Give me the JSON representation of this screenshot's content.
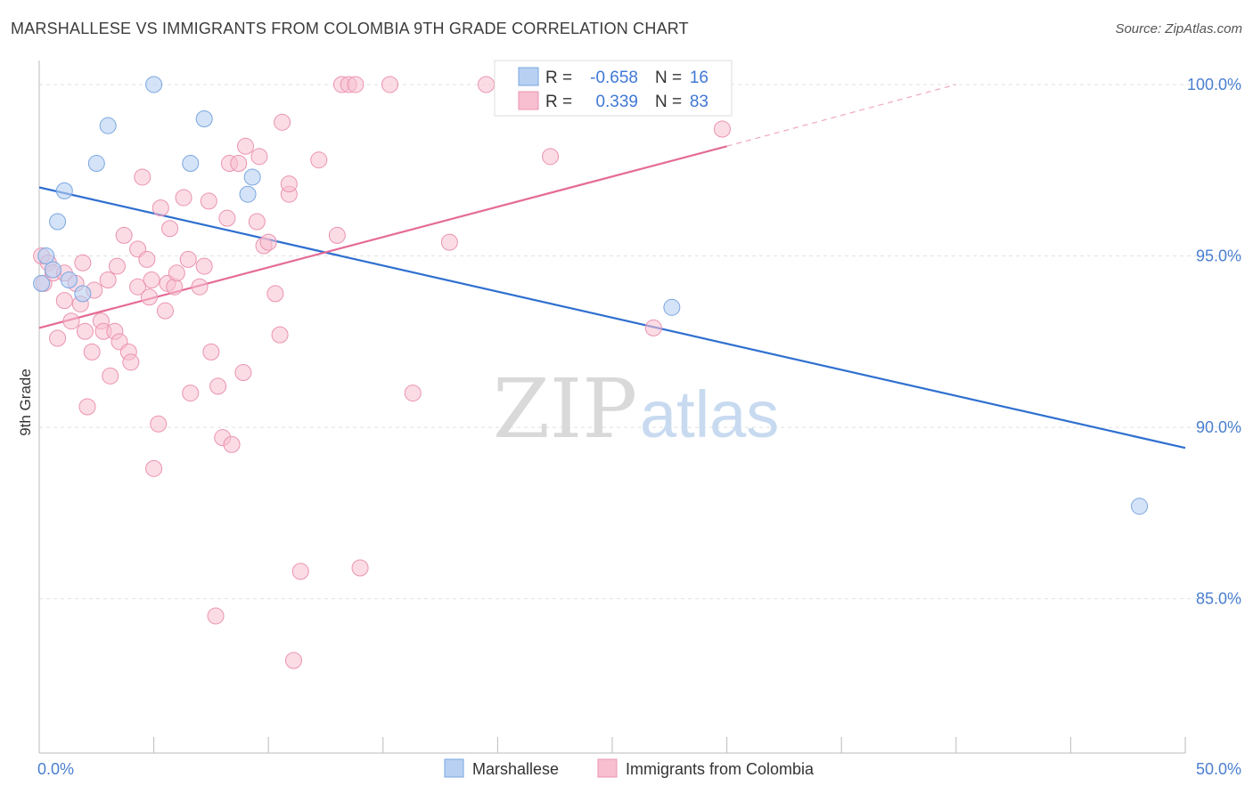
{
  "header": {
    "title": "MARSHALLESE VS IMMIGRANTS FROM COLOMBIA 9TH GRADE CORRELATION CHART",
    "source": "Source: ZipAtlas.com"
  },
  "watermark": {
    "zip": "ZIP",
    "atlas": "atlas"
  },
  "legend": {
    "rows": [
      {
        "r_label": "R =",
        "r_value": "-0.658",
        "n_label": "N =",
        "n_value": "16"
      },
      {
        "r_label": "R =",
        "r_value": "0.339",
        "n_label": "N =",
        "n_value": "83"
      }
    ]
  },
  "bottom_legend": {
    "items": [
      "Marshallese",
      "Immigrants from Colombia"
    ]
  },
  "colors": {
    "blue_fill": "#b8d1f2",
    "blue_stroke": "#7aa6e0",
    "blue_line": "#2f6fd0",
    "pink_fill": "#f7bfd0",
    "pink_stroke": "#eb93b0",
    "pink_line": "#e56b97",
    "tick_text": "#4a7fd0",
    "grid": "#e2e2e2"
  },
  "chart_data": {
    "type": "scatter",
    "title": "MARSHALLESE VS IMMIGRANTS FROM COLOMBIA 9TH GRADE CORRELATION CHART",
    "xlabel": "",
    "ylabel": "9th Grade",
    "xlim": [
      0,
      50
    ],
    "ylim": [
      80.5,
      100.7
    ],
    "x_ticks": [
      0,
      5,
      10,
      15,
      20,
      25,
      30,
      35,
      40,
      45,
      50
    ],
    "x_tick_labels": [
      "0.0%",
      "",
      "",
      "",
      "",
      "",
      "",
      "",
      "",
      "",
      "50.0%"
    ],
    "y_ticks": [
      85,
      90,
      95,
      100
    ],
    "y_tick_labels": [
      "85.0%",
      "90.0%",
      "95.0%",
      "100.0%"
    ],
    "grid": true,
    "legend_position": "top-center",
    "series": [
      {
        "name": "Marshallese",
        "r": -0.658,
        "n": 16,
        "trend": {
          "x": [
            0,
            50
          ],
          "y": [
            97.0,
            89.4
          ]
        },
        "points": [
          [
            0.1,
            94.2
          ],
          [
            0.3,
            95.0
          ],
          [
            0.6,
            94.6
          ],
          [
            0.8,
            96.0
          ],
          [
            1.1,
            96.9
          ],
          [
            1.3,
            94.3
          ],
          [
            1.9,
            93.9
          ],
          [
            2.5,
            97.7
          ],
          [
            3.0,
            98.8
          ],
          [
            5.0,
            100.0
          ],
          [
            6.6,
            97.7
          ],
          [
            7.2,
            99.0
          ],
          [
            9.1,
            96.8
          ],
          [
            9.3,
            97.3
          ],
          [
            27.6,
            93.5
          ],
          [
            48.0,
            87.7
          ]
        ]
      },
      {
        "name": "Immigrants from Colombia",
        "r": 0.339,
        "n": 83,
        "trend": {
          "x": [
            0,
            30.0
          ],
          "y": [
            92.9,
            98.2
          ]
        },
        "trend_dashed": {
          "x": [
            30.0,
            40.0
          ],
          "y": [
            98.2,
            100.0
          ]
        },
        "points": [
          [
            0.1,
            95.0
          ],
          [
            0.2,
            94.2
          ],
          [
            0.4,
            94.8
          ],
          [
            0.6,
            94.5
          ],
          [
            0.8,
            92.6
          ],
          [
            1.1,
            94.5
          ],
          [
            1.1,
            93.7
          ],
          [
            1.4,
            93.1
          ],
          [
            1.6,
            94.2
          ],
          [
            1.8,
            93.6
          ],
          [
            1.9,
            94.8
          ],
          [
            2.0,
            92.8
          ],
          [
            2.1,
            90.6
          ],
          [
            2.3,
            92.2
          ],
          [
            2.4,
            94.0
          ],
          [
            2.7,
            93.1
          ],
          [
            2.8,
            92.8
          ],
          [
            3.0,
            94.3
          ],
          [
            3.1,
            91.5
          ],
          [
            3.3,
            92.8
          ],
          [
            3.4,
            94.7
          ],
          [
            3.5,
            92.5
          ],
          [
            3.7,
            95.6
          ],
          [
            3.9,
            92.2
          ],
          [
            4.0,
            91.9
          ],
          [
            4.3,
            94.1
          ],
          [
            4.3,
            95.2
          ],
          [
            4.5,
            97.3
          ],
          [
            4.7,
            94.9
          ],
          [
            4.8,
            93.8
          ],
          [
            4.9,
            94.3
          ],
          [
            5.0,
            88.8
          ],
          [
            5.2,
            90.1
          ],
          [
            5.3,
            96.4
          ],
          [
            5.5,
            93.4
          ],
          [
            5.6,
            94.2
          ],
          [
            5.7,
            95.8
          ],
          [
            5.9,
            94.1
          ],
          [
            6.0,
            94.5
          ],
          [
            6.3,
            96.7
          ],
          [
            6.5,
            94.9
          ],
          [
            6.6,
            91.0
          ],
          [
            7.0,
            94.1
          ],
          [
            7.2,
            94.7
          ],
          [
            7.4,
            96.6
          ],
          [
            7.5,
            92.2
          ],
          [
            7.7,
            84.5
          ],
          [
            7.8,
            91.2
          ],
          [
            8.0,
            89.7
          ],
          [
            8.2,
            96.1
          ],
          [
            8.3,
            97.7
          ],
          [
            8.4,
            89.5
          ],
          [
            8.7,
            97.7
          ],
          [
            8.9,
            91.6
          ],
          [
            9.0,
            98.2
          ],
          [
            9.5,
            96.0
          ],
          [
            9.6,
            97.9
          ],
          [
            9.8,
            95.3
          ],
          [
            10.0,
            95.4
          ],
          [
            10.3,
            93.9
          ],
          [
            10.5,
            92.7
          ],
          [
            10.6,
            98.9
          ],
          [
            10.9,
            96.8
          ],
          [
            10.9,
            97.1
          ],
          [
            11.1,
            83.2
          ],
          [
            11.4,
            85.8
          ],
          [
            12.2,
            97.8
          ],
          [
            13.0,
            95.6
          ],
          [
            13.2,
            100.0
          ],
          [
            13.5,
            100.0
          ],
          [
            13.8,
            100.0
          ],
          [
            14.0,
            85.9
          ],
          [
            15.3,
            100.0
          ],
          [
            16.3,
            91.0
          ],
          [
            17.9,
            95.4
          ],
          [
            19.5,
            100.0
          ],
          [
            20.7,
            100.0
          ],
          [
            22.3,
            97.9
          ],
          [
            26.0,
            100.0
          ],
          [
            26.2,
            100.0
          ],
          [
            26.8,
            92.9
          ],
          [
            28.6,
            100.0
          ],
          [
            29.8,
            98.7
          ]
        ]
      }
    ]
  }
}
